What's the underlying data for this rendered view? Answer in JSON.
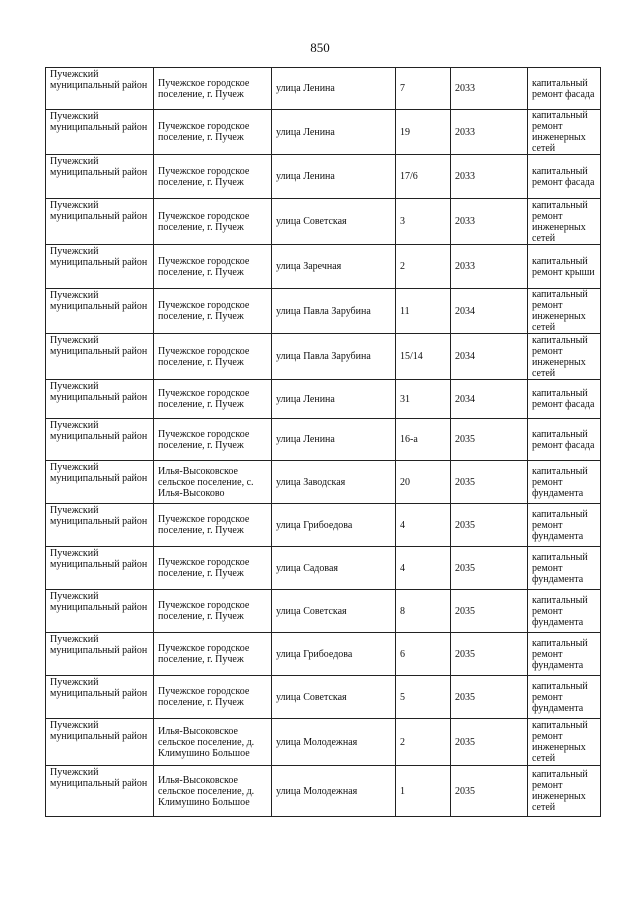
{
  "page_number": "850",
  "rows": [
    [
      "Пучежский муниципальный район",
      "Пучежское городское поселение, г. Пучеж",
      "улица Ленина",
      "7",
      "2033",
      "капитальный ремонт фасада"
    ],
    [
      "Пучежский муниципальный район",
      "Пучежское городское поселение, г. Пучеж",
      "улица Ленина",
      "19",
      "2033",
      "капитальный ремонт инженерных сетей"
    ],
    [
      "Пучежский муниципальный район",
      "Пучежское городское поселение, г. Пучеж",
      "улица Ленина",
      "17/6",
      "2033",
      "капитальный ремонт фасада"
    ],
    [
      "Пучежский муниципальный район",
      "Пучежское городское поселение, г. Пучеж",
      "улица Советская",
      "3",
      "2033",
      "капитальный ремонт инженерных сетей"
    ],
    [
      "Пучежский муниципальный район",
      "Пучежское городское поселение, г. Пучеж",
      "улица Заречная",
      "2",
      "2033",
      "капитальный ремонт крыши"
    ],
    [
      "Пучежский муниципальный район",
      "Пучежское городское поселение, г. Пучеж",
      "улица Павла Зарубина",
      "11",
      "2034",
      "капитальный ремонт инженерных сетей"
    ],
    [
      "Пучежский муниципальный район",
      "Пучежское городское поселение, г. Пучеж",
      "улица Павла Зарубина",
      "15/14",
      "2034",
      "капитальный ремонт инженерных сетей"
    ],
    [
      "Пучежский муниципальный район",
      "Пучежское городское поселение, г. Пучеж",
      "улица Ленина",
      "31",
      "2034",
      "капитальный ремонт фасада"
    ],
    [
      "Пучежский муниципальный район",
      "Пучежское городское поселение, г. Пучеж",
      "улица Ленина",
      "16-а",
      "2035",
      "капитальный ремонт фасада"
    ],
    [
      "Пучежский муниципальный район",
      "Илья-Высоковское сельское поселение, с. Илья-Высоково",
      "улица Заводская",
      "20",
      "2035",
      "капитальный ремонт фундамента"
    ],
    [
      "Пучежский муниципальный район",
      "Пучежское городское поселение, г. Пучеж",
      "улица Грибоедова",
      "4",
      "2035",
      "капитальный ремонт фундамента"
    ],
    [
      "Пучежский муниципальный район",
      "Пучежское городское поселение, г. Пучеж",
      "улица Садовая",
      "4",
      "2035",
      "капитальный ремонт фундамента"
    ],
    [
      "Пучежский муниципальный район",
      "Пучежское городское поселение, г. Пучеж",
      "улица Советская",
      "8",
      "2035",
      "капитальный ремонт фундамента"
    ],
    [
      "Пучежский муниципальный район",
      "Пучежское городское поселение, г. Пучеж",
      "улица Грибоедова",
      "6",
      "2035",
      "капитальный ремонт фундамента"
    ],
    [
      "Пучежский муниципальный район",
      "Пучежское городское поселение, г. Пучеж",
      "улица Советская",
      "5",
      "2035",
      "капитальный ремонт фундамента"
    ],
    [
      "Пучежский муниципальный район",
      "Илья-Высоковское сельское поселение, д. Климушино Большое",
      "улица Молодежная",
      "2",
      "2035",
      "капитальный ремонт инженерных сетей"
    ],
    [
      "Пучежский муниципальный район",
      "Илья-Высоковское сельское поселение, д. Климушино Большое",
      "улица Молодежная",
      "1",
      "2035",
      "капитальный ремонт инженерных сетей"
    ]
  ]
}
